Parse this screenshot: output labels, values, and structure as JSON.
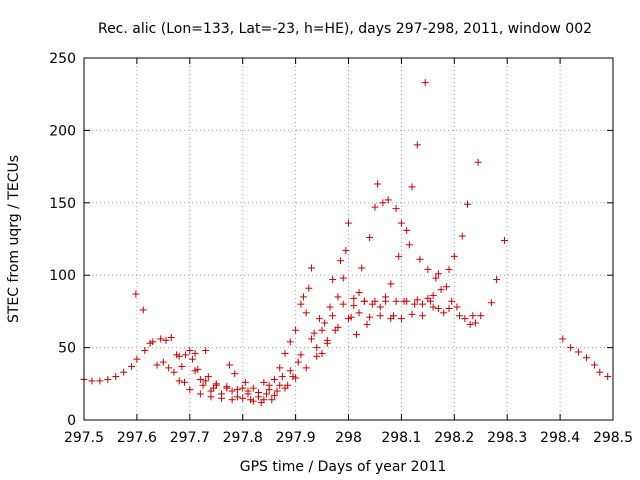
{
  "chart_data": {
    "type": "scatter",
    "title": "Rec. alic (Lon=133, Lat=-23, h=HE), days 297-298, 2011, window 002",
    "xlabel": "GPS time / Days of year 2011",
    "ylabel": "STEC from uqrg / TECUs",
    "xlim": [
      297.5,
      298.5
    ],
    "ylim": [
      0,
      250
    ],
    "x_ticks": [
      297.5,
      297.6,
      297.7,
      297.8,
      297.9,
      298.0,
      298.1,
      298.2,
      298.3,
      298.4,
      298.5
    ],
    "x_tick_labels": [
      "297.5",
      "297.6",
      "297.7",
      "297.8",
      "297.9",
      "298",
      "298.1",
      "298.2",
      "298.3",
      "298.4",
      "298.5"
    ],
    "y_ticks": [
      0,
      50,
      100,
      150,
      200,
      250
    ],
    "y_tick_labels": [
      "0",
      "50",
      "100",
      "150",
      "200",
      "250"
    ],
    "grid": true,
    "marker": "+",
    "color": "#cc0000",
    "series": [
      {
        "name": "STEC",
        "points": [
          [
            297.5,
            28
          ],
          [
            297.515,
            27
          ],
          [
            297.53,
            27
          ],
          [
            297.545,
            28
          ],
          [
            297.56,
            30
          ],
          [
            297.575,
            33
          ],
          [
            297.59,
            37
          ],
          [
            297.598,
            87
          ],
          [
            297.6,
            42
          ],
          [
            297.612,
            76
          ],
          [
            297.615,
            48
          ],
          [
            297.625,
            53
          ],
          [
            297.63,
            54
          ],
          [
            297.638,
            38
          ],
          [
            297.645,
            56
          ],
          [
            297.65,
            40
          ],
          [
            297.655,
            55
          ],
          [
            297.66,
            36
          ],
          [
            297.665,
            57
          ],
          [
            297.67,
            33
          ],
          [
            297.675,
            45
          ],
          [
            297.68,
            44
          ],
          [
            297.685,
            37
          ],
          [
            297.69,
            26
          ],
          [
            297.692,
            45
          ],
          [
            297.7,
            48
          ],
          [
            297.705,
            42
          ],
          [
            297.71,
            46
          ],
          [
            297.715,
            35
          ],
          [
            297.72,
            28
          ],
          [
            297.725,
            24
          ],
          [
            297.73,
            48
          ],
          [
            297.735,
            30
          ],
          [
            297.74,
            20
          ],
          [
            297.745,
            22
          ],
          [
            297.75,
            25
          ],
          [
            297.76,
            18
          ],
          [
            297.77,
            23
          ],
          [
            297.775,
            38
          ],
          [
            297.78,
            20
          ],
          [
            297.785,
            32
          ],
          [
            297.79,
            16
          ],
          [
            297.8,
            22
          ],
          [
            297.805,
            26
          ],
          [
            297.81,
            20
          ],
          [
            297.815,
            14
          ],
          [
            297.82,
            22
          ],
          [
            297.83,
            16
          ],
          [
            297.835,
            12
          ],
          [
            297.84,
            26
          ],
          [
            297.845,
            18
          ],
          [
            297.85,
            24
          ],
          [
            297.855,
            14
          ],
          [
            297.86,
            28
          ],
          [
            297.865,
            20
          ],
          [
            297.87,
            36
          ],
          [
            297.875,
            30
          ],
          [
            297.88,
            46
          ],
          [
            297.885,
            24
          ],
          [
            297.89,
            54
          ],
          [
            297.895,
            30
          ],
          [
            297.9,
            62
          ],
          [
            297.905,
            40
          ],
          [
            297.91,
            80
          ],
          [
            297.915,
            85
          ],
          [
            297.92,
            74
          ],
          [
            297.925,
            91
          ],
          [
            297.93,
            105
          ],
          [
            297.935,
            60
          ],
          [
            297.94,
            50
          ],
          [
            297.945,
            70
          ],
          [
            297.95,
            46
          ],
          [
            297.955,
            67
          ],
          [
            297.96,
            55
          ],
          [
            297.965,
            78
          ],
          [
            297.97,
            97
          ],
          [
            297.975,
            62
          ],
          [
            297.98,
            85
          ],
          [
            297.985,
            110
          ],
          [
            297.99,
            98
          ],
          [
            297.995,
            117
          ],
          [
            298.0,
            136
          ],
          [
            298.005,
            71
          ],
          [
            298.01,
            79
          ],
          [
            298.015,
            59
          ],
          [
            298.02,
            88
          ],
          [
            298.025,
            105
          ],
          [
            298.03,
            82
          ],
          [
            298.035,
            66
          ],
          [
            298.04,
            126
          ],
          [
            298.045,
            80
          ],
          [
            298.05,
            147
          ],
          [
            298.055,
            163
          ],
          [
            298.06,
            78
          ],
          [
            298.065,
            150
          ],
          [
            298.07,
            85
          ],
          [
            298.075,
            152
          ],
          [
            298.08,
            94
          ],
          [
            298.085,
            72
          ],
          [
            298.09,
            146
          ],
          [
            298.095,
            113
          ],
          [
            298.1,
            136
          ],
          [
            298.105,
            82
          ],
          [
            298.11,
            131
          ],
          [
            298.115,
            121
          ],
          [
            298.12,
            161
          ],
          [
            298.125,
            80
          ],
          [
            298.13,
            190
          ],
          [
            298.135,
            111
          ],
          [
            298.14,
            72
          ],
          [
            298.145,
            233
          ],
          [
            298.15,
            104
          ],
          [
            298.155,
            82
          ],
          [
            298.16,
            78
          ],
          [
            298.165,
            98
          ],
          [
            298.17,
            101
          ],
          [
            298.175,
            90
          ],
          [
            298.18,
            74
          ],
          [
            298.185,
            92
          ],
          [
            298.19,
            104
          ],
          [
            298.195,
            82
          ],
          [
            298.2,
            113
          ],
          [
            298.205,
            78
          ],
          [
            298.21,
            72
          ],
          [
            298.215,
            127
          ],
          [
            298.22,
            70
          ],
          [
            298.225,
            149
          ],
          [
            298.23,
            66
          ],
          [
            298.235,
            72
          ],
          [
            298.24,
            67
          ],
          [
            298.245,
            178
          ],
          [
            298.25,
            72
          ],
          [
            298.27,
            81
          ],
          [
            298.28,
            97
          ],
          [
            298.295,
            124
          ],
          [
            297.68,
            27
          ],
          [
            297.7,
            21
          ],
          [
            297.72,
            18
          ],
          [
            297.74,
            16
          ],
          [
            297.76,
            15
          ],
          [
            297.78,
            14
          ],
          [
            297.8,
            15
          ],
          [
            297.82,
            13
          ],
          [
            297.84,
            14
          ],
          [
            297.86,
            17
          ],
          [
            297.88,
            22
          ],
          [
            297.9,
            29
          ],
          [
            297.92,
            36
          ],
          [
            297.94,
            44
          ],
          [
            297.96,
            53
          ],
          [
            297.98,
            64
          ],
          [
            298.0,
            70
          ],
          [
            298.02,
            74
          ],
          [
            298.04,
            71
          ],
          [
            298.06,
            72
          ],
          [
            298.08,
            70
          ],
          [
            298.1,
            70
          ],
          [
            298.12,
            73
          ],
          [
            298.14,
            80
          ],
          [
            298.16,
            86
          ],
          [
            297.71,
            34
          ],
          [
            297.73,
            27
          ],
          [
            297.75,
            24
          ],
          [
            297.77,
            22
          ],
          [
            297.79,
            21
          ],
          [
            297.81,
            18
          ],
          [
            297.83,
            19
          ],
          [
            297.85,
            21
          ],
          [
            297.87,
            24
          ],
          [
            297.89,
            34
          ],
          [
            297.91,
            45
          ],
          [
            297.93,
            56
          ],
          [
            297.95,
            62
          ],
          [
            297.97,
            72
          ],
          [
            297.99,
            80
          ],
          [
            298.01,
            84
          ],
          [
            298.03,
            82
          ],
          [
            298.05,
            82
          ],
          [
            298.07,
            82
          ],
          [
            298.09,
            82
          ],
          [
            298.11,
            82
          ],
          [
            298.13,
            83
          ],
          [
            298.15,
            84
          ],
          [
            298.17,
            77
          ],
          [
            298.19,
            77
          ],
          [
            298.405,
            56
          ],
          [
            298.42,
            50
          ],
          [
            298.435,
            47
          ],
          [
            298.45,
            43
          ],
          [
            298.465,
            38
          ],
          [
            298.475,
            33
          ],
          [
            298.49,
            30
          ]
        ]
      }
    ]
  }
}
